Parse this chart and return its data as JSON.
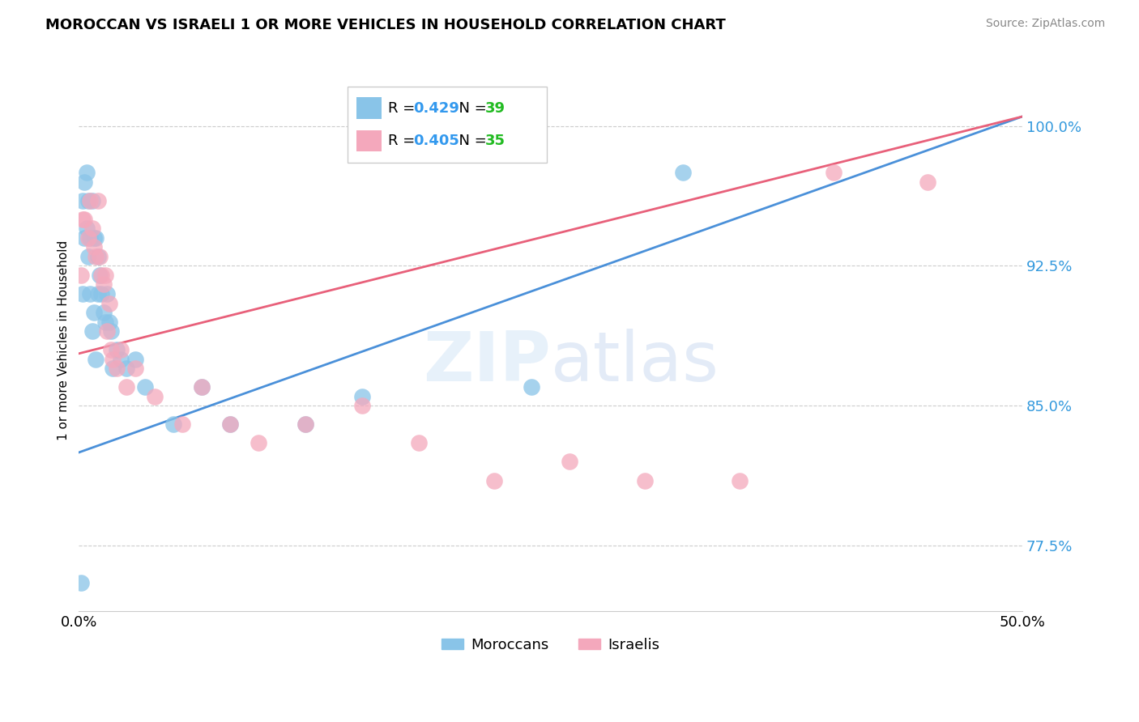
{
  "title": "MOROCCAN VS ISRAELI 1 OR MORE VEHICLES IN HOUSEHOLD CORRELATION CHART",
  "source": "Source: ZipAtlas.com",
  "ylabel": "1 or more Vehicles in Household",
  "xlim": [
    0.0,
    0.5
  ],
  "ylim": [
    0.74,
    1.03
  ],
  "yticks": [
    0.775,
    0.85,
    0.925,
    1.0
  ],
  "yticklabels": [
    "77.5%",
    "85.0%",
    "92.5%",
    "100.0%"
  ],
  "moroccan_R": 0.429,
  "moroccan_N": 39,
  "israeli_R": 0.405,
  "israeli_N": 35,
  "moroccan_color": "#89C4E8",
  "israeli_color": "#F4A8BC",
  "moroccan_line_color": "#4A90D9",
  "israeli_line_color": "#E8607A",
  "legend_moroccan": "Moroccans",
  "legend_israeli": "Israelis",
  "moroccan_x": [
    0.001,
    0.002,
    0.002,
    0.003,
    0.003,
    0.004,
    0.004,
    0.005,
    0.005,
    0.006,
    0.006,
    0.007,
    0.007,
    0.008,
    0.008,
    0.009,
    0.009,
    0.01,
    0.01,
    0.011,
    0.012,
    0.013,
    0.014,
    0.015,
    0.016,
    0.017,
    0.018,
    0.02,
    0.022,
    0.025,
    0.03,
    0.035,
    0.05,
    0.065,
    0.08,
    0.12,
    0.15,
    0.24,
    0.32
  ],
  "moroccan_y": [
    0.755,
    0.91,
    0.96,
    0.94,
    0.97,
    0.945,
    0.975,
    0.93,
    0.96,
    0.91,
    0.94,
    0.89,
    0.96,
    0.9,
    0.94,
    0.875,
    0.94,
    0.91,
    0.93,
    0.92,
    0.91,
    0.9,
    0.895,
    0.91,
    0.895,
    0.89,
    0.87,
    0.88,
    0.875,
    0.87,
    0.875,
    0.86,
    0.84,
    0.86,
    0.84,
    0.84,
    0.855,
    0.86,
    0.975
  ],
  "israeli_x": [
    0.001,
    0.002,
    0.003,
    0.005,
    0.006,
    0.007,
    0.008,
    0.009,
    0.01,
    0.011,
    0.012,
    0.013,
    0.014,
    0.015,
    0.016,
    0.017,
    0.018,
    0.02,
    0.022,
    0.025,
    0.03,
    0.04,
    0.055,
    0.065,
    0.08,
    0.095,
    0.12,
    0.15,
    0.18,
    0.22,
    0.26,
    0.3,
    0.35,
    0.4,
    0.45
  ],
  "israeli_y": [
    0.92,
    0.95,
    0.95,
    0.94,
    0.96,
    0.945,
    0.935,
    0.93,
    0.96,
    0.93,
    0.92,
    0.915,
    0.92,
    0.89,
    0.905,
    0.88,
    0.875,
    0.87,
    0.88,
    0.86,
    0.87,
    0.855,
    0.84,
    0.86,
    0.84,
    0.83,
    0.84,
    0.85,
    0.83,
    0.81,
    0.82,
    0.81,
    0.81,
    0.975,
    0.97
  ]
}
